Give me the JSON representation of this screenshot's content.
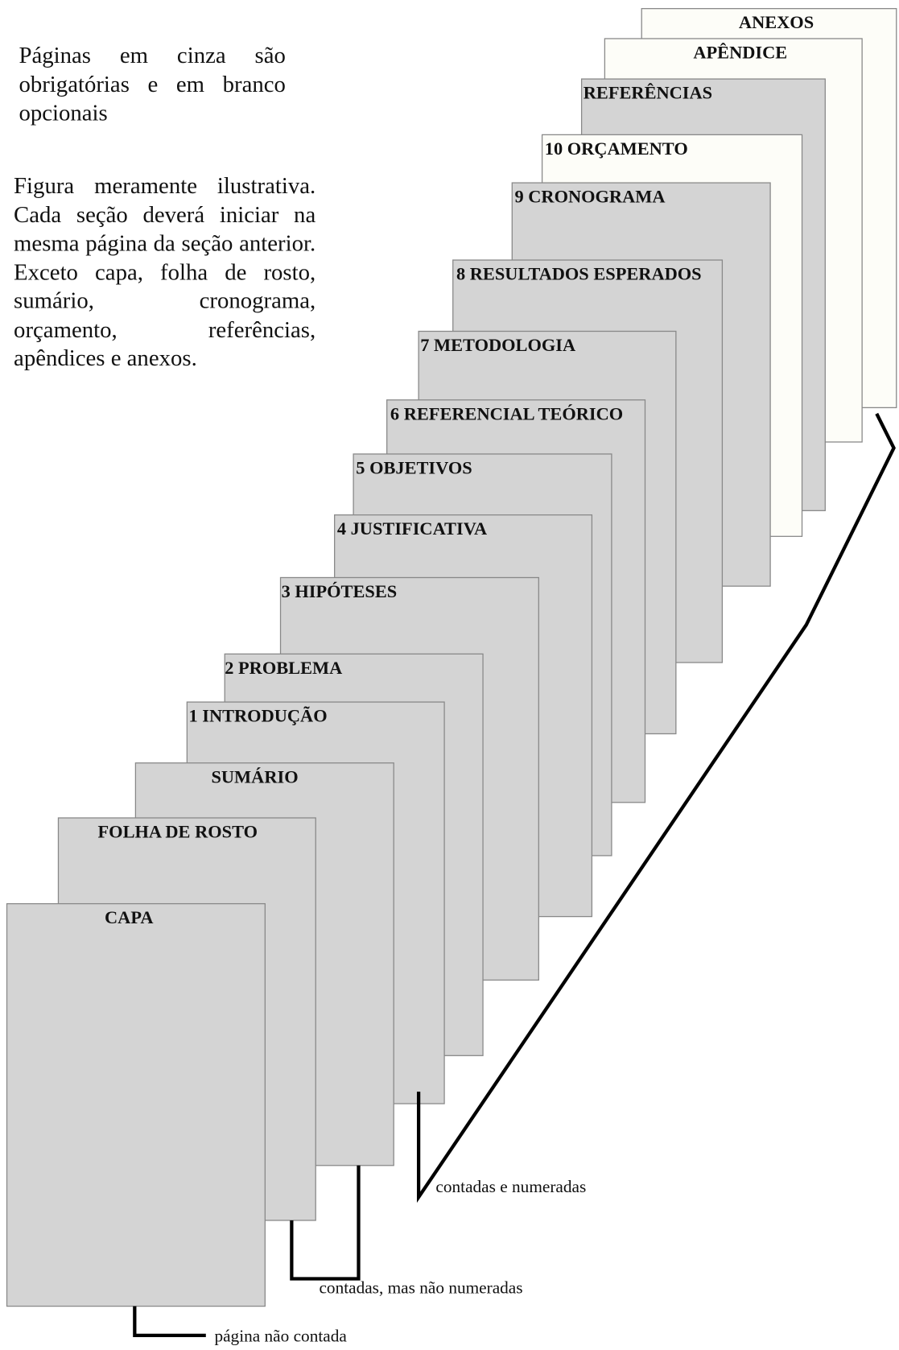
{
  "notes": [
    "Páginas em cinza são obrigatórias e em branco opcionais",
    "Figura meramente ilustrativa. Cada seção deverá iniciar na mesma página da seção anterior. Exceto capa, folha de rosto, sumário, cronograma, orçamento, referências, apêndices e anexos."
  ],
  "pages": [
    {
      "label": "CAPA",
      "required": true
    },
    {
      "label": "FOLHA DE ROSTO",
      "required": true
    },
    {
      "label": "SUMÁRIO",
      "required": true
    },
    {
      "label": "1 INTRODUÇÃO",
      "required": true
    },
    {
      "label": "2 PROBLEMA",
      "required": true
    },
    {
      "label": "3 HIPÓTESES",
      "required": true
    },
    {
      "label": "4 JUSTIFICATIVA",
      "required": true
    },
    {
      "label": "5 OBJETIVOS",
      "required": true
    },
    {
      "label": "6 REFERENCIAL TEÓRICO",
      "required": true
    },
    {
      "label": "7 METODOLOGIA",
      "required": true
    },
    {
      "label": "8 RESULTADOS ESPERADOS",
      "required": true
    },
    {
      "label": "9 CRONOGRAMA",
      "required": true
    },
    {
      "label": "10 ORÇAMENTO",
      "required": false
    },
    {
      "label": "REFERÊNCIAS",
      "required": true
    },
    {
      "label": "APÊNDICE",
      "required": false
    },
    {
      "label": "ANEXOS",
      "required": false
    }
  ],
  "brackets": [
    "página não contada",
    "contadas, mas não numeradas",
    "contadas e numeradas"
  ]
}
